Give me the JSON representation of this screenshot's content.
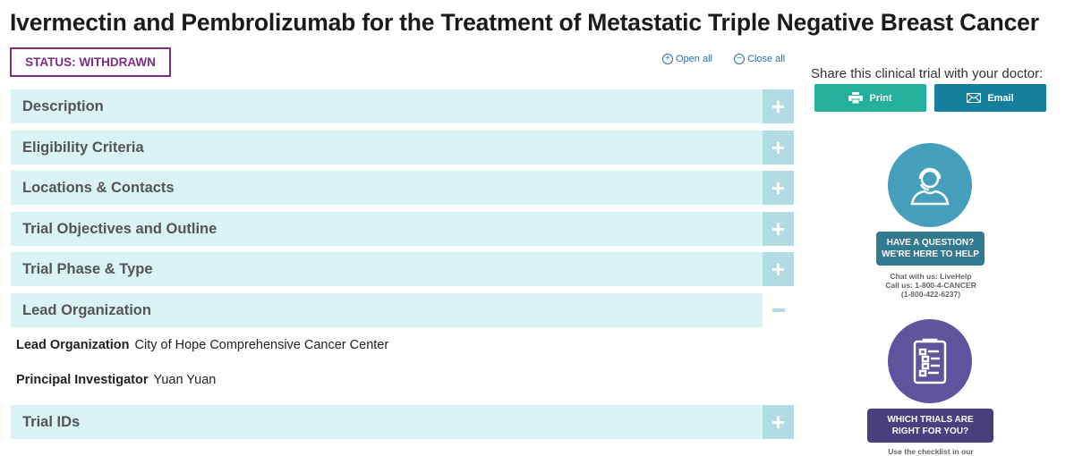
{
  "title": "Ivermectin and Pembrolizumab for the Treatment of Metastatic Triple Negative Breast Cancer",
  "status": "STATUS: WITHDRAWN",
  "open_all": "Open all",
  "close_all": "Close all",
  "sections": [
    "Description",
    "Eligibility Criteria",
    "Locations & Contacts",
    "Trial Objectives and Outline",
    "Trial Phase & Type",
    "Lead Organization",
    "Trial IDs"
  ],
  "lead_org": {
    "label": "Lead Organization",
    "value": "City of Hope Comprehensive Cancer Center"
  },
  "pi": {
    "label": "Principal Investigator",
    "value": "Yuan Yuan"
  },
  "share": {
    "text": "Share this clinical trial with your doctor:",
    "print": "Print",
    "email": "Email"
  },
  "help": {
    "line1": "HAVE A QUESTION?",
    "line2": "WE'RE HERE TO HELP",
    "chat": "Chat with us: LiveHelp",
    "call": "Call us: 1-800-4-CANCER",
    "phone": "(1-800-422-6237)"
  },
  "trials": {
    "line1": "WHICH TRIALS ARE",
    "line2": "RIGHT FOR YOU?",
    "sub": "Use the checklist in our"
  },
  "colors": {
    "status": "#7f2c83",
    "accordion": "#daf3f5",
    "print": "#23b09c",
    "email": "#167f9b",
    "help_circle": "#469fbd",
    "trials_circle": "#62539e"
  }
}
